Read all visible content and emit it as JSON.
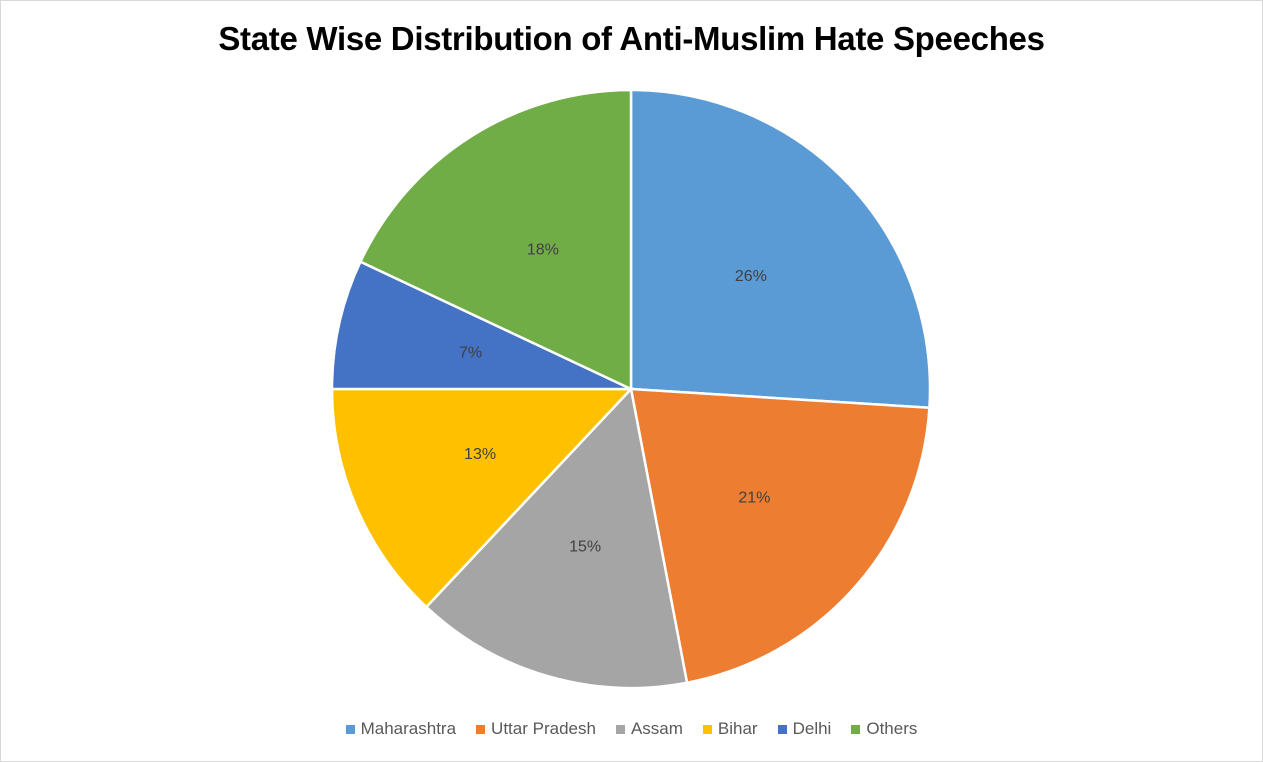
{
  "chart_data": {
    "type": "pie",
    "title": "State Wise Distribution of Anti-Muslim Hate Speeches",
    "categories": [
      "Maharashtra",
      "Uttar Pradesh",
      "Assam",
      "Bihar",
      "Delhi",
      "Others"
    ],
    "values": [
      26,
      21,
      15,
      13,
      7,
      18
    ],
    "labels": [
      "26%",
      "21%",
      "15%",
      "13%",
      "7%",
      "18%"
    ],
    "colors": [
      "#5b9bd5",
      "#ed7d31",
      "#a5a5a5",
      "#ffc000",
      "#4472c4",
      "#70ad47"
    ],
    "legend_position": "bottom",
    "start_angle_deg": 0,
    "direction": "clockwise"
  }
}
